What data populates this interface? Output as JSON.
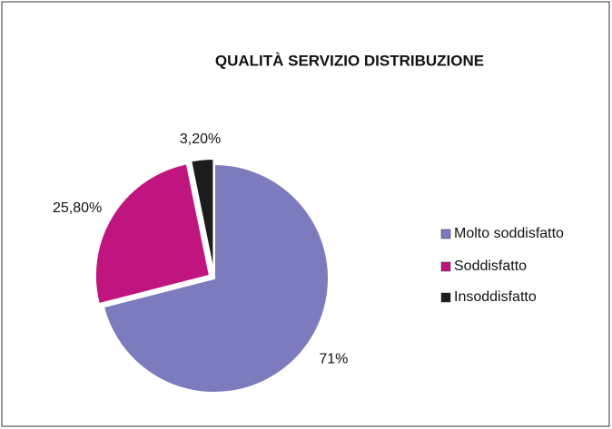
{
  "chart_data": {
    "type": "pie",
    "title": "QUALITÀ SERVIZIO DISTRIBUZIONE",
    "categories": [
      "Molto soddisfatto",
      "Soddisfatto",
      "Insoddisfatto"
    ],
    "values": [
      71,
      25.8,
      3.2
    ],
    "value_labels": [
      "71%",
      "25,80%",
      "3,20%"
    ],
    "colors": [
      "#7b7bbd",
      "#c0157f",
      "#1c1c1c"
    ],
    "legend": "right"
  }
}
